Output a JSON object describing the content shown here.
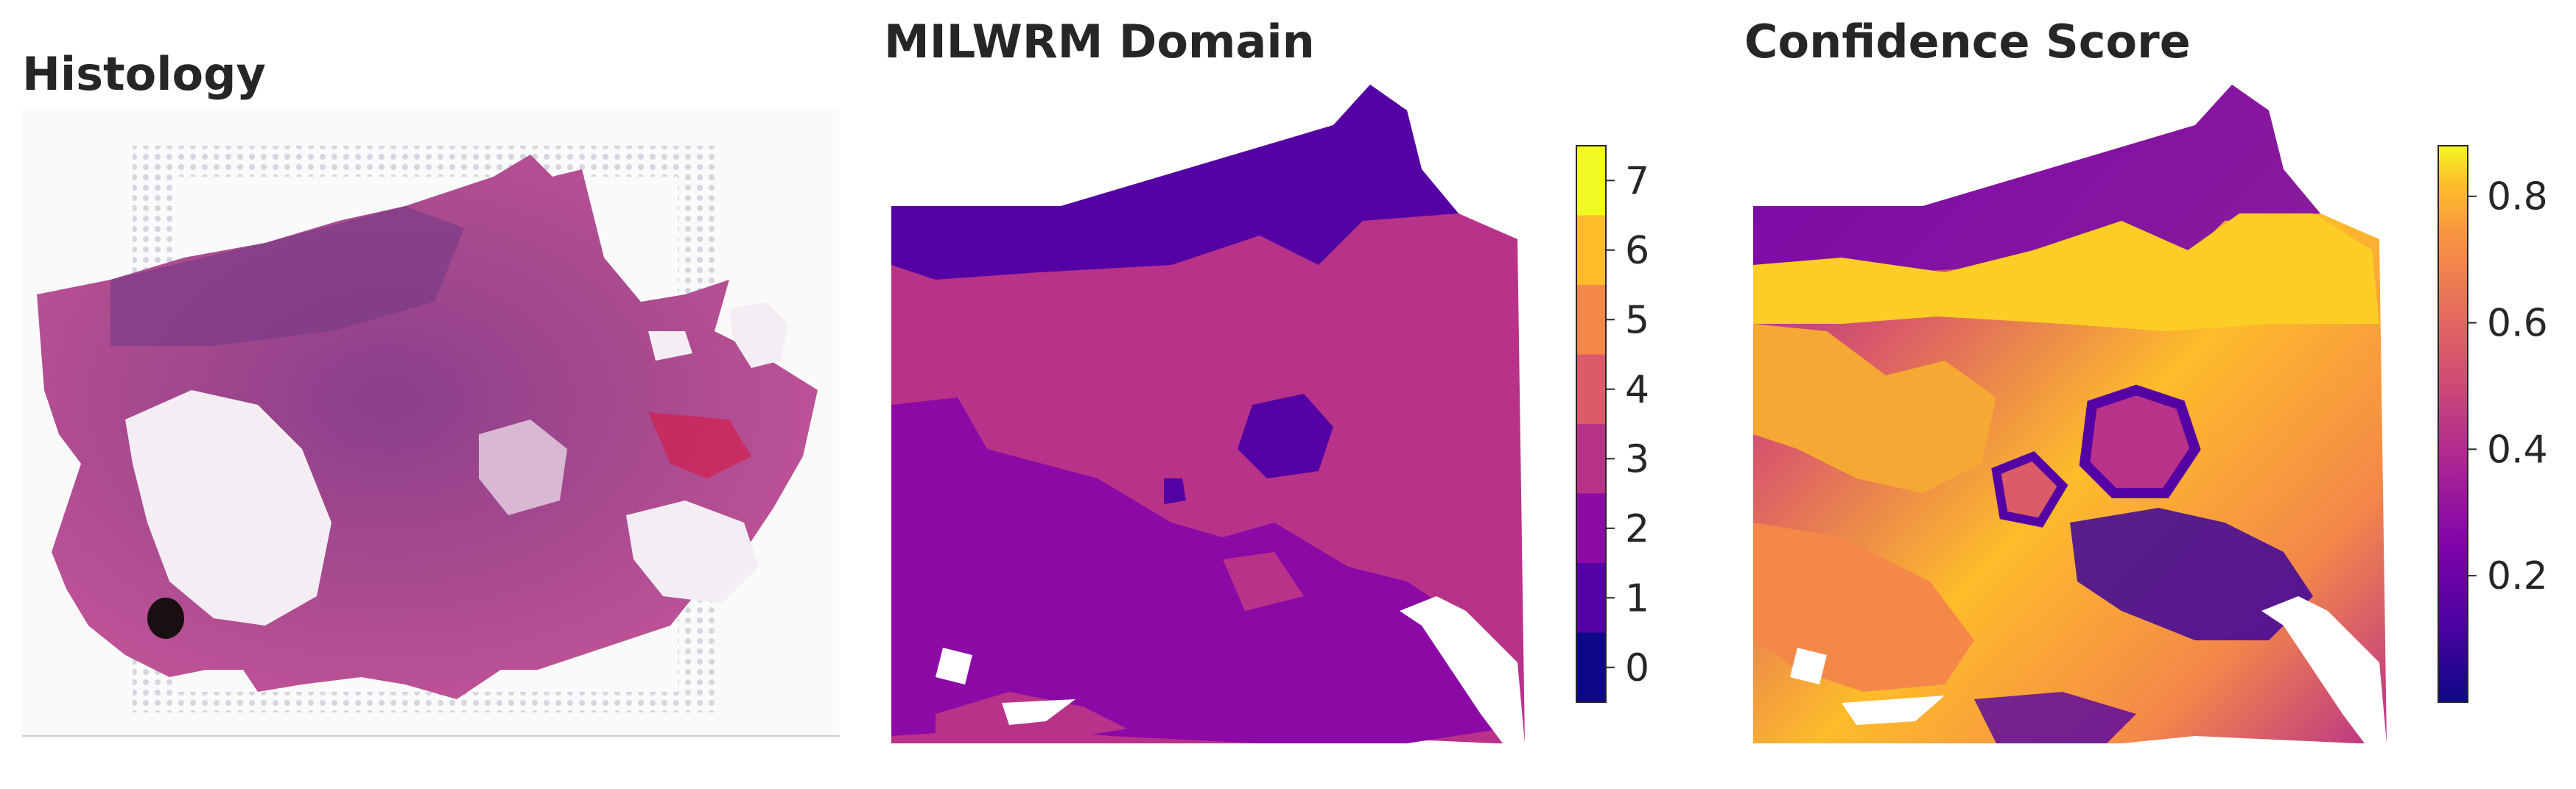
{
  "panels": {
    "histology": {
      "title": "Histology"
    },
    "domain": {
      "title": "MILWRM Domain"
    },
    "confidence": {
      "title": "Confidence Score"
    }
  },
  "chart_data": [
    {
      "type": "image",
      "title": "Histology"
    },
    {
      "type": "heatmap",
      "title": "MILWRM Domain",
      "colorbar": {
        "kind": "discrete",
        "ticks": [
          "0",
          "1",
          "2",
          "3",
          "4",
          "5",
          "6",
          "7"
        ],
        "range": [
          0,
          7
        ]
      },
      "colors": [
        "#0d0887",
        "#5402a3",
        "#8b0aa5",
        "#b93289",
        "#db5c68",
        "#f48849",
        "#febc2a",
        "#f0f921"
      ]
    },
    {
      "type": "heatmap",
      "title": "Confidence Score",
      "colorbar": {
        "kind": "continuous",
        "ticks": [
          "0.2",
          "0.4",
          "0.6",
          "0.8"
        ],
        "tick_values": [
          0.2,
          0.4,
          0.6,
          0.8
        ],
        "range": [
          0.0,
          0.88
        ]
      },
      "colormap": "plasma"
    }
  ]
}
